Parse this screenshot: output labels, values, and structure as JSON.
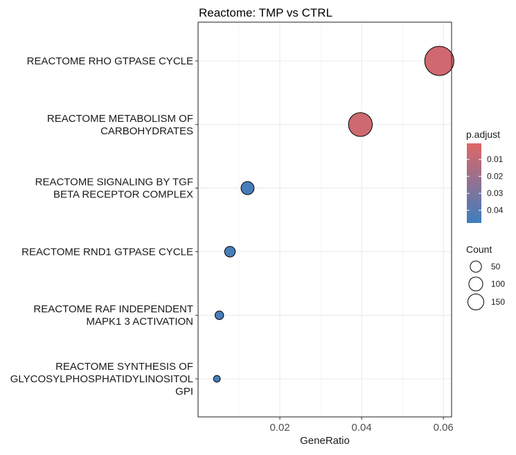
{
  "chart_data": {
    "type": "scatter",
    "title": "Reactome: TMP vs CTRL",
    "xlabel": "GeneRatio",
    "ylabel": "",
    "xlim": [
      0.0,
      0.062
    ],
    "x_ticks": [
      0.02,
      0.04,
      0.06
    ],
    "x_tick_labels": [
      "0.02",
      "0.04",
      "0.06"
    ],
    "grid": true,
    "categories": [
      "REACTOME RHO GTPASE CYCLE",
      "REACTOME METABOLISM OF CARBOHYDRATES",
      "REACTOME SIGNALING BY TGF BETA RECEPTOR COMPLEX",
      "REACTOME RND1 GTPASE CYCLE",
      "REACTOME RAF INDEPENDENT MAPK1 3 ACTIVATION",
      "REACTOME SYNTHESIS OF GLYCOSYLPHOSPHATIDYLINOSITOL GPI"
    ],
    "category_label_lines": [
      [
        "REACTOME RHO GTPASE CYCLE"
      ],
      [
        "REACTOME METABOLISM OF",
        "CARBOHYDRATES"
      ],
      [
        "REACTOME SIGNALING BY TGF",
        "BETA RECEPTOR COMPLEX"
      ],
      [
        "REACTOME RND1 GTPASE CYCLE"
      ],
      [
        "REACTOME RAF INDEPENDENT",
        "MAPK1 3 ACTIVATION"
      ],
      [
        "REACTOME SYNTHESIS OF",
        "GLYCOSYLPHOSPHATIDYLINOSITOL",
        "GPI"
      ]
    ],
    "points": [
      {
        "category": "REACTOME RHO GTPASE CYCLE",
        "x": 0.059,
        "count": 150,
        "p_adjust": 0.005
      },
      {
        "category": "REACTOME METABOLISM OF CARBOHYDRATES",
        "x": 0.0397,
        "count": 100,
        "p_adjust": 0.006
      },
      {
        "category": "REACTOME SIGNALING BY TGF BETA RECEPTOR COMPLEX",
        "x": 0.0121,
        "count": 30,
        "p_adjust": 0.045
      },
      {
        "category": "REACTOME RND1 GTPASE CYCLE",
        "x": 0.0078,
        "count": 20,
        "p_adjust": 0.045
      },
      {
        "category": "REACTOME RAF INDEPENDENT MAPK1 3 ACTIVATION",
        "x": 0.0052,
        "count": 13,
        "p_adjust": 0.045
      },
      {
        "category": "REACTOME SYNTHESIS OF GLYCOSYLPHOSPHATIDYLINOSITOL GPI",
        "x": 0.0046,
        "count": 8,
        "p_adjust": 0.045
      }
    ],
    "color_legend": {
      "title": "p.adjust",
      "range": [
        0.0005,
        0.0475
      ],
      "low_color": "#e06666",
      "high_color": "#3d7ebf",
      "ticks": [
        0.01,
        0.02,
        0.03,
        0.04
      ],
      "tick_labels": [
        "0.01",
        "0.02",
        "0.03",
        "0.04"
      ]
    },
    "size_legend": {
      "title": "Count",
      "values": [
        50,
        100,
        150
      ],
      "labels": [
        "50",
        "100",
        "150"
      ]
    },
    "legend_position": "right"
  }
}
